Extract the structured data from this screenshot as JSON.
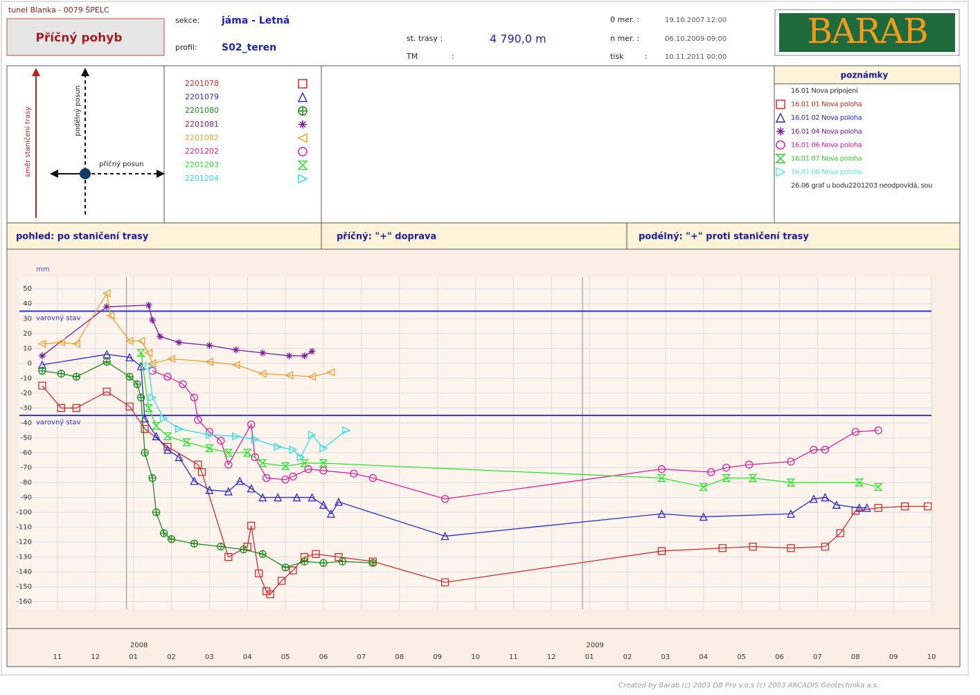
{
  "header": {
    "project": "tunel Blanka - 0079 ŠPELC",
    "report": "Příčný pohyb",
    "section_label": "sekce:",
    "section": "jáma - Letná",
    "profile_label": "profil:",
    "profile": "S02_teren",
    "station_label": "st. trasy :",
    "station": "4 790,0 m",
    "tm_label": "TM",
    "tm_colon": ":",
    "m0_label": "0 mer. :",
    "m0": "19.10.2007 12:00",
    "mn_label": "n mer. :",
    "mn": "06.10.2009 09:00",
    "print_label": "tisk",
    "print_colon": ":",
    "print": "10.11.2011 00:00",
    "logo": "BARAB"
  },
  "diagram": {
    "direction": "směr staničení trasy",
    "longitudinal": "podélný posun",
    "transverse": "příčný posun"
  },
  "notes": {
    "title": "poznámky",
    "items": [
      {
        "text": "16.01 Nova pripojeni",
        "color": "#333333"
      },
      {
        "text": "16.01 01 Nova poloha",
        "color": "#d42a2a",
        "marker": "square"
      },
      {
        "text": "16.01 02 Nova poloha",
        "color": "#2a2ad0",
        "marker": "triangle"
      },
      {
        "text": "16.01 04 Nova poloha",
        "color": "#7a1a9a",
        "marker": "asterisk"
      },
      {
        "text": "16.01 06 Nova poloha",
        "color": "#e0209a",
        "marker": "circle"
      },
      {
        "text": "16.01 07 Nova poloha",
        "color": "#30d030",
        "marker": "hourglass"
      },
      {
        "text": "16.01 08 Nova poloha",
        "color": "#60e8ec",
        "marker": "righttriangle"
      },
      {
        "text": "26.06 graf u bodu2201203 neodpovídá, sou",
        "color": "#333333"
      }
    ]
  },
  "bar": {
    "view": "pohled: po  staničení trasy",
    "transverse": "příčný:  \"+\"  doprava",
    "longitudinal": "podélný:  \"+\"  proti  staničení trasy"
  },
  "chart_data": {
    "type": "line",
    "y_unit": "mm",
    "xlim": [
      -1,
      23
    ],
    "ylim": [
      -165,
      58
    ],
    "xticks": [
      {
        "value": 0,
        "label": "11"
      },
      {
        "value": 1,
        "label": "12"
      },
      {
        "value": 2,
        "label": "01"
      },
      {
        "value": 3,
        "label": "02"
      },
      {
        "value": 4,
        "label": "03"
      },
      {
        "value": 5,
        "label": "04"
      },
      {
        "value": 6,
        "label": "05"
      },
      {
        "value": 7,
        "label": "06"
      },
      {
        "value": 8,
        "label": "07"
      },
      {
        "value": 9,
        "label": "08"
      },
      {
        "value": 10,
        "label": "09"
      },
      {
        "value": 11,
        "label": "10"
      },
      {
        "value": 12,
        "label": "11"
      },
      {
        "value": 13,
        "label": "12"
      },
      {
        "value": 14,
        "label": "01"
      },
      {
        "value": 15,
        "label": "02"
      },
      {
        "value": 16,
        "label": "03"
      },
      {
        "value": 17,
        "label": "04"
      },
      {
        "value": 18,
        "label": "05"
      },
      {
        "value": 19,
        "label": "06"
      },
      {
        "value": 20,
        "label": "07"
      },
      {
        "value": 21,
        "label": "08"
      },
      {
        "value": 22,
        "label": "09"
      },
      {
        "value": 23,
        "label": "10"
      }
    ],
    "years": [
      {
        "value": 2,
        "label": "2008"
      },
      {
        "value": 14,
        "label": "2009"
      }
    ],
    "yticks": [
      50,
      40,
      30,
      20,
      10,
      0,
      -10,
      -20,
      -30,
      -40,
      -50,
      -60,
      -70,
      -80,
      -90,
      -100,
      -110,
      -120,
      -130,
      -140,
      -150,
      -160
    ],
    "grid": true,
    "thresholds": [
      {
        "value": 35,
        "label": "varovný stav"
      },
      {
        "value": -35,
        "label": "varovný stav"
      }
    ],
    "threshold_color": "#3030c8",
    "series": [
      {
        "name": "2201078",
        "color": "#d42a2a",
        "marker": "square",
        "x": [
          -0.4,
          0.1,
          0.5,
          1.3,
          1.9,
          2.3,
          2.9,
          3.7,
          3.8,
          4.5,
          5.0,
          5.1,
          5.3,
          5.5,
          5.6,
          5.9,
          6.2,
          6.5,
          6.8,
          7.4,
          8.3,
          10.2,
          15.9,
          17.5,
          18.3,
          19.3,
          20.2,
          20.6,
          21.0,
          21.6,
          22.3,
          22.9
        ],
        "values": [
          -15,
          -30,
          -30,
          -19,
          -29,
          -44,
          -56,
          -68,
          -73,
          -130,
          -123,
          -109,
          -141,
          -153,
          -155,
          -146,
          -139,
          -130,
          -128,
          -130,
          -133,
          -147,
          -126,
          -124,
          -123,
          -124,
          -123,
          -114,
          -99,
          -97,
          -96,
          -96
        ]
      },
      {
        "name": "2201079",
        "color": "#2a2ad0",
        "marker": "triangle",
        "x": [
          -0.4,
          1.3,
          1.9,
          2.2,
          2.3,
          2.6,
          2.9,
          3.2,
          3.6,
          4.0,
          4.5,
          4.8,
          5.1,
          5.4,
          5.8,
          6.3,
          6.7,
          7.0,
          7.2,
          7.4,
          10.2,
          15.9,
          17.0,
          19.3,
          19.9,
          20.2,
          20.5,
          21.1,
          21.3
        ],
        "values": [
          -1,
          6,
          4,
          -2,
          -37,
          -49,
          -58,
          -63,
          -79,
          -85,
          -86,
          -79,
          -84,
          -90,
          -90,
          -90,
          -90,
          -95,
          -101,
          -93,
          -116,
          -101,
          -103,
          -101,
          -91,
          -90,
          -95,
          -97,
          -97
        ]
      },
      {
        "name": "2201080",
        "color": "#1a8a1a",
        "marker": "circleplus",
        "x": [
          -0.4,
          0.1,
          0.5,
          1.3,
          1.9,
          2.1,
          2.2,
          2.3,
          2.5,
          2.6,
          2.8,
          3.0,
          3.6,
          4.3,
          4.9,
          5.4,
          6.0,
          6.5,
          7.0,
          7.5,
          8.3
        ],
        "values": [
          -5,
          -7,
          -9,
          1,
          -9,
          -14,
          -23,
          -60,
          -77,
          -100,
          -114,
          -118,
          -121,
          -123,
          -125,
          -128,
          -137,
          -133,
          -134,
          -133,
          -134
        ]
      },
      {
        "name": "2201081",
        "color": "#7a1a9a",
        "marker": "asterisk",
        "x": [
          -0.4,
          1.3,
          2.4,
          2.5,
          2.7,
          3.2,
          4.0,
          4.7,
          5.4,
          6.1,
          6.5,
          6.7
        ],
        "values": [
          5,
          38,
          39,
          29,
          18,
          14,
          12,
          9,
          7,
          5,
          5,
          8
        ]
      },
      {
        "name": "2201082",
        "color": "#f0a030",
        "marker": "lefttriangle",
        "x": [
          -0.4,
          0.1,
          0.5,
          1.3,
          1.4,
          1.9,
          2.2,
          2.4,
          2.5,
          3.0,
          4.0,
          4.7,
          5.4,
          6.1,
          6.7,
          7.2
        ],
        "values": [
          13,
          14,
          13,
          47,
          32,
          15,
          15,
          7,
          0,
          3,
          1,
          -1,
          -7,
          -8,
          -9,
          -6
        ]
      },
      {
        "name": "2201202",
        "color": "#e0209a",
        "marker": "circle",
        "x": [
          2.5,
          2.9,
          3.3,
          3.6,
          3.7,
          4.0,
          4.3,
          4.5,
          5.1,
          5.2,
          5.5,
          6.0,
          6.2,
          6.6,
          7.0,
          7.8,
          8.3,
          10.2,
          15.9,
          17.2,
          17.6,
          18.2,
          19.3,
          19.9,
          20.2,
          21.0,
          21.6
        ],
        "values": [
          -5,
          -9,
          -14,
          -23,
          -38,
          -46,
          -52,
          -68,
          -41,
          -63,
          -77,
          -78,
          -76,
          -71,
          -72,
          -74,
          -77,
          -91,
          -71,
          -73,
          -70,
          -68,
          -66,
          -58,
          -58,
          -46,
          -45
        ]
      },
      {
        "name": "2201203",
        "color": "#30e030",
        "marker": "hourglass",
        "x": [
          2.2,
          2.4,
          2.6,
          2.9,
          3.4,
          4.0,
          4.5,
          5.0,
          5.4,
          6.0,
          6.5,
          7.0,
          15.9,
          17.0,
          17.6,
          18.3,
          19.3,
          21.1,
          21.6
        ],
        "values": [
          7,
          -30,
          -42,
          -49,
          -53,
          -57,
          -60,
          -60,
          -67,
          -69,
          -67,
          -67,
          -77,
          -83,
          -77,
          -77,
          -80,
          -80,
          -83
        ]
      },
      {
        "name": "2201204",
        "color": "#30dde0",
        "marker": "righttriangle",
        "x": [
          2.4,
          2.5,
          2.8,
          3.2,
          4.0,
          4.7,
          5.2,
          5.8,
          6.2,
          6.4,
          6.7,
          7.0,
          7.6
        ],
        "values": [
          -2,
          -23,
          -37,
          -44,
          -48,
          -49,
          -51,
          -56,
          -58,
          -63,
          -48,
          -57,
          -45
        ]
      }
    ]
  },
  "footer": "Created by Barab (c) 2003 DB Pro v.o.s (c) 2003 ARCADIS Geotechnika a.s."
}
